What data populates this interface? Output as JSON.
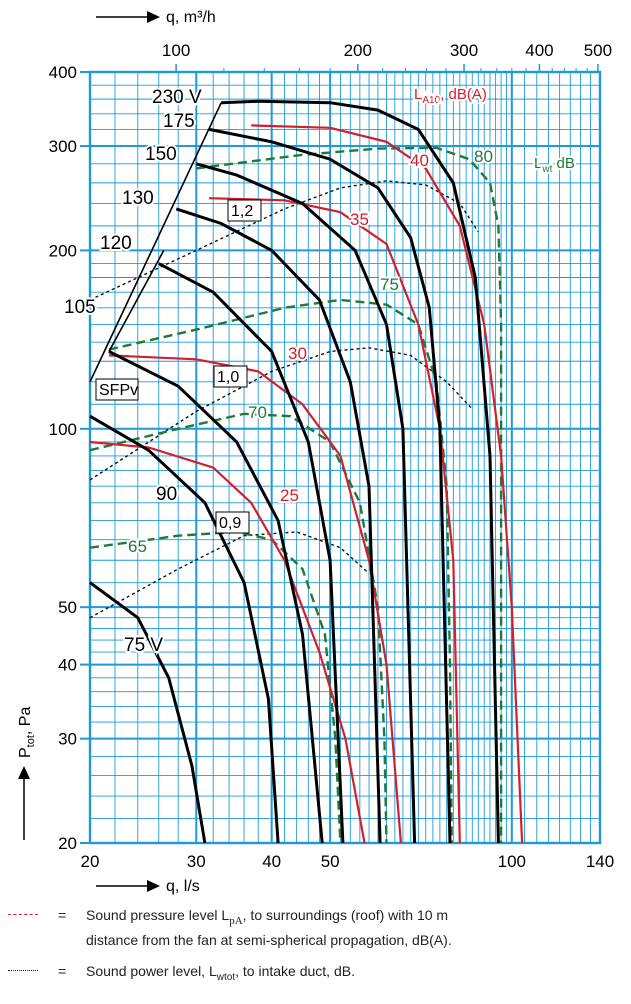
{
  "chart_data": {
    "type": "line",
    "top_axis_label": "q, m³/h",
    "top_ticks": [
      {
        "value": 100,
        "label": "100"
      },
      {
        "value": 200,
        "label": "200"
      },
      {
        "value": 300,
        "label": "300"
      },
      {
        "value": 400,
        "label": "400"
      },
      {
        "value": 500,
        "label": "500"
      }
    ],
    "xlabel": "q, l/s",
    "x_ticks": [
      {
        "value": 20,
        "label": "20"
      },
      {
        "value": 30,
        "label": "30"
      },
      {
        "value": 40,
        "label": "40"
      },
      {
        "value": 50,
        "label": "50"
      },
      {
        "value": 100,
        "label": "100"
      },
      {
        "value": 140,
        "label": "140"
      }
    ],
    "ylabel": "P",
    "ylabel_sub": "tot",
    "ylabel_unit": ", Pa",
    "y_ticks": [
      {
        "value": 20,
        "label": "20"
      },
      {
        "value": 30,
        "label": "30"
      },
      {
        "value": 40,
        "label": "40"
      },
      {
        "value": 50,
        "label": "50"
      },
      {
        "value": 100,
        "label": "100"
      },
      {
        "value": 200,
        "label": "200"
      },
      {
        "value": 300,
        "label": "300"
      },
      {
        "value": 400,
        "label": "400"
      }
    ],
    "x_scale": "log",
    "y_scale": "log",
    "xlim": [
      20,
      140
    ],
    "ylim": [
      20,
      400
    ],
    "grid": true,
    "fan_curves": [
      {
        "label": "230 V",
        "points": [
          [
            33,
            355
          ],
          [
            38,
            357
          ],
          [
            50,
            355
          ],
          [
            60,
            345
          ],
          [
            70,
            320
          ],
          [
            80,
            260
          ],
          [
            87,
            180
          ],
          [
            92,
            90
          ],
          [
            95,
            20
          ]
        ]
      },
      {
        "label": "175",
        "points": [
          [
            31.5,
            320
          ],
          [
            40,
            305
          ],
          [
            50,
            285
          ],
          [
            60,
            255
          ],
          [
            68,
            210
          ],
          [
            73,
            160
          ],
          [
            76,
            100
          ],
          [
            79,
            20
          ]
        ]
      },
      {
        "label": "150",
        "points": [
          [
            30,
            280
          ],
          [
            35,
            268
          ],
          [
            45,
            240
          ],
          [
            55,
            200
          ],
          [
            62,
            150
          ],
          [
            66,
            100
          ],
          [
            69,
            20
          ]
        ]
      },
      {
        "label": "130",
        "points": [
          [
            27.8,
            235
          ],
          [
            33,
            222
          ],
          [
            40,
            200
          ],
          [
            48,
            165
          ],
          [
            54,
            120
          ],
          [
            58,
            80
          ],
          [
            60.5,
            20
          ]
        ]
      },
      {
        "label": "120",
        "points": [
          [
            26,
            190
          ],
          [
            32,
            170
          ],
          [
            40,
            135
          ],
          [
            46,
            95
          ],
          [
            50,
            60
          ],
          [
            52.5,
            20
          ]
        ]
      },
      {
        "label": "105",
        "points": [
          [
            21.5,
            135
          ],
          [
            28,
            118
          ],
          [
            35,
            95
          ],
          [
            41,
            70
          ],
          [
            45,
            45
          ],
          [
            48.5,
            20
          ]
        ]
      },
      {
        "label": "90",
        "points": [
          [
            20,
            105
          ],
          [
            25,
            92
          ],
          [
            31,
            75
          ],
          [
            36,
            55
          ],
          [
            39.5,
            35
          ],
          [
            41,
            20
          ]
        ]
      },
      {
        "label": "75 V",
        "points": [
          [
            20,
            55
          ],
          [
            24,
            48
          ],
          [
            27,
            38
          ],
          [
            29.5,
            27
          ],
          [
            31,
            20
          ]
        ]
      }
    ],
    "lpa_title": "L",
    "lpa_sub": "A10",
    "lpa_unit": ", dB(A)",
    "lpa_curves": [
      {
        "label": "40",
        "points": [
          [
            37,
            325
          ],
          [
            50,
            322
          ],
          [
            62,
            305
          ],
          [
            72,
            275
          ],
          [
            82,
            220
          ],
          [
            90,
            150
          ],
          [
            96,
            90
          ],
          [
            100,
            50
          ],
          [
            104,
            20
          ]
        ]
      },
      {
        "label": "35",
        "points": [
          [
            31.5,
            245
          ],
          [
            42,
            243
          ],
          [
            52,
            232
          ],
          [
            62,
            205
          ],
          [
            70,
            150
          ],
          [
            76,
            100
          ],
          [
            80,
            60
          ],
          [
            82,
            20
          ]
        ]
      },
      {
        "label": "30",
        "points": [
          [
            21.5,
            133
          ],
          [
            30,
            131
          ],
          [
            38,
            125
          ],
          [
            45,
            110
          ],
          [
            52,
            90
          ],
          [
            58,
            60
          ],
          [
            62,
            40
          ],
          [
            65.5,
            20
          ]
        ]
      },
      {
        "label": "25",
        "points": [
          [
            20,
            95
          ],
          [
            25,
            93
          ],
          [
            32,
            86
          ],
          [
            37,
            75
          ],
          [
            42,
            60
          ],
          [
            48,
            42
          ],
          [
            53,
            30
          ],
          [
            57,
            20
          ]
        ]
      }
    ],
    "lwt_title": "L",
    "lwt_sub": "wt",
    "lwt_unit": " dB",
    "lwt_curves": [
      {
        "label": "80",
        "points": [
          [
            30,
            275
          ],
          [
            45,
            290
          ],
          [
            60,
            297
          ],
          [
            75,
            298
          ],
          [
            85,
            285
          ],
          [
            92,
            260
          ],
          [
            95,
            220
          ],
          [
            96,
            150
          ],
          [
            96,
            50
          ],
          [
            96,
            20
          ]
        ]
      },
      {
        "label": "75",
        "points": [
          [
            21.5,
            136
          ],
          [
            30,
            147
          ],
          [
            42,
            160
          ],
          [
            52,
            165
          ],
          [
            62,
            162
          ],
          [
            70,
            150
          ],
          [
            75,
            120
          ],
          [
            78,
            80
          ],
          [
            79,
            40
          ],
          [
            79.5,
            20
          ]
        ]
      },
      {
        "label": "70",
        "points": [
          [
            20,
            92
          ],
          [
            28,
            100
          ],
          [
            36,
            106
          ],
          [
            43,
            105
          ],
          [
            50,
            95
          ],
          [
            56,
            75
          ],
          [
            60,
            50
          ],
          [
            61.5,
            30
          ],
          [
            62,
            20
          ]
        ]
      },
      {
        "label": "65",
        "points": [
          [
            20,
            63
          ],
          [
            28,
            66
          ],
          [
            35,
            67
          ],
          [
            40,
            65
          ],
          [
            45,
            58
          ],
          [
            49,
            45
          ],
          [
            51,
            30
          ],
          [
            52,
            20
          ]
        ]
      }
    ],
    "sfp_title": "SFPv",
    "sfp_curves": [
      {
        "label": "1,2",
        "points": [
          [
            20,
            165
          ],
          [
            30,
            200
          ],
          [
            42,
            235
          ],
          [
            52,
            255
          ],
          [
            62,
            262
          ],
          [
            72,
            258
          ],
          [
            82,
            240
          ],
          [
            88,
            215
          ]
        ]
      },
      {
        "label": "1,0",
        "points": [
          [
            20,
            82
          ],
          [
            30,
            107
          ],
          [
            40,
            125
          ],
          [
            50,
            135
          ],
          [
            58,
            137
          ],
          [
            68,
            133
          ],
          [
            78,
            120
          ],
          [
            86,
            108
          ]
        ]
      },
      {
        "label": "0,9",
        "points": [
          [
            20,
            48
          ],
          [
            28,
            58
          ],
          [
            36,
            66
          ],
          [
            44,
            67
          ],
          [
            52,
            63
          ],
          [
            58,
            57
          ]
        ]
      }
    ]
  },
  "legend": {
    "red_line": "Sound pressure level L",
    "red_sub": "pA",
    "red_rest": ", to surroundings (roof) with 10 m",
    "red_line2": "distance from the fan at semi-spherical propagation, dB(A).",
    "dot_line": "Sound power level, L",
    "dot_sub": "wtot",
    "dot_rest": ", to intake duct, dB.",
    "equals": "="
  },
  "colors": {
    "grid": "#1e9ad6",
    "fan": "#000000",
    "lpa": "#d0202e",
    "lwt": "#1f7a3a",
    "sfp": "#111111"
  }
}
